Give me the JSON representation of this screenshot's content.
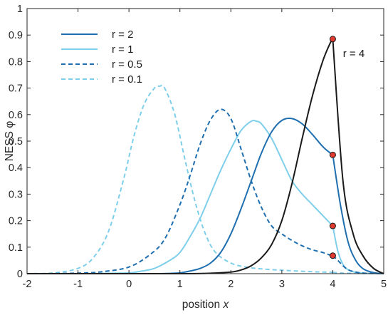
{
  "chart_data": {
    "type": "line",
    "title": "",
    "xlabel": {
      "prefix": "position ",
      "var": "x"
    },
    "ylabel": "NESS φ",
    "xlim": [
      -2,
      5
    ],
    "ylim": [
      0,
      1
    ],
    "xticks": [
      "-2",
      "-1",
      "0",
      "1",
      "2",
      "3",
      "4",
      "5"
    ],
    "yticks": [
      "0",
      "0.1",
      "0.2",
      "0.3",
      "0.4",
      "0.5",
      "0.6",
      "0.7",
      "0.8",
      "0.9",
      "1"
    ],
    "grid": false,
    "legend": {
      "position": "top-left"
    },
    "colors": {
      "r4": "#1a1a1a",
      "r2": "#1f6fb0",
      "r1": "#7fcfea",
      "r05": "#1f6fb0",
      "r01": "#7fcfea",
      "marker": "#e0392f"
    },
    "series": [
      {
        "name": "r = 2",
        "legend": true,
        "style": "solid",
        "color": "#1f6fb0",
        "x": [
          -2,
          -1,
          -0.5,
          0,
          0.5,
          0.8,
          1,
          1.2,
          1.4,
          1.6,
          1.8,
          2,
          2.2,
          2.4,
          2.6,
          2.8,
          3,
          3.2,
          3.4,
          3.6,
          3.8,
          3.95,
          4
        ],
        "y": [
          0,
          0,
          0,
          0,
          0,
          0.001,
          0.003,
          0.01,
          0.02,
          0.04,
          0.08,
          0.15,
          0.245,
          0.35,
          0.455,
          0.535,
          0.578,
          0.585,
          0.565,
          0.525,
          0.48,
          0.455,
          0.448
        ]
      },
      {
        "name": "r = 1",
        "legend": true,
        "style": "solid",
        "color": "#7fcfea",
        "x": [
          -2,
          -1,
          -0.5,
          0,
          0.2,
          0.5,
          0.8,
          1,
          1.2,
          1.4,
          1.6,
          1.8,
          2,
          2.2,
          2.4,
          2.5,
          2.6,
          2.8,
          3,
          3.2,
          3.4,
          3.6,
          3.8,
          3.95,
          4
        ],
        "y": [
          0,
          0,
          0.001,
          0.003,
          0.008,
          0.02,
          0.05,
          0.08,
          0.14,
          0.21,
          0.3,
          0.39,
          0.47,
          0.54,
          0.575,
          0.575,
          0.565,
          0.51,
          0.43,
          0.35,
          0.3,
          0.26,
          0.22,
          0.19,
          0.18
        ]
      },
      {
        "name": "r = 0.5",
        "legend": true,
        "style": "dashed",
        "color": "#1f6fb0",
        "x": [
          -2,
          -1,
          -0.5,
          0,
          0.4,
          0.7,
          1,
          1.2,
          1.4,
          1.6,
          1.8,
          2,
          2.2,
          2.4,
          2.6,
          2.8,
          3,
          3.2,
          3.4,
          3.6,
          3.8,
          3.95,
          4
        ],
        "y": [
          0,
          0.002,
          0.008,
          0.025,
          0.07,
          0.13,
          0.26,
          0.37,
          0.49,
          0.58,
          0.62,
          0.585,
          0.47,
          0.35,
          0.25,
          0.18,
          0.15,
          0.125,
          0.105,
          0.09,
          0.08,
          0.07,
          0.068
        ]
      },
      {
        "name": "r = 0.1",
        "legend": true,
        "style": "dashed",
        "color": "#7fcfea",
        "x": [
          -2,
          -1.5,
          -1,
          -0.7,
          -0.4,
          -0.1,
          0.1,
          0.3,
          0.5,
          0.6,
          0.7,
          0.9,
          1.1,
          1.3,
          1.5,
          1.7,
          2,
          2.3,
          2.6,
          3,
          3.5,
          4
        ],
        "y": [
          0,
          0.002,
          0.02,
          0.06,
          0.16,
          0.36,
          0.52,
          0.64,
          0.7,
          0.707,
          0.7,
          0.6,
          0.43,
          0.27,
          0.15,
          0.08,
          0.04,
          0.025,
          0.018,
          0.013,
          0.008,
          0.005
        ]
      },
      {
        "name": "r = 4",
        "legend": false,
        "style": "solid",
        "color": "#1a1a1a",
        "x": [
          -2,
          -1,
          0,
          1,
          1.5,
          2,
          2.2,
          2.4,
          2.6,
          2.8,
          3,
          3.2,
          3.4,
          3.6,
          3.8,
          3.95,
          4
        ],
        "y": [
          0,
          0,
          0,
          0,
          0.001,
          0.006,
          0.014,
          0.03,
          0.06,
          0.11,
          0.2,
          0.34,
          0.51,
          0.67,
          0.8,
          0.87,
          0.885
        ]
      },
      {
        "name": "r = 4 tail",
        "legend": false,
        "style": "solid",
        "color": "#1a1a1a",
        "x": [
          4,
          4.2,
          4.4,
          4.6,
          4.8,
          5
        ],
        "y": [
          0.885,
          0.35,
          0.15,
          0.065,
          0.02,
          0
        ]
      },
      {
        "name": "r = 2 tail",
        "legend": false,
        "style": "solid",
        "color": "#1f6fb0",
        "x": [
          4,
          4.15,
          4.3,
          4.45,
          4.6,
          4.8,
          5
        ],
        "y": [
          0.448,
          0.26,
          0.12,
          0.05,
          0.018,
          0.004,
          0
        ]
      },
      {
        "name": "r = 1 tail",
        "legend": false,
        "style": "solid",
        "color": "#7fcfea",
        "x": [
          4,
          4.1,
          4.2,
          4.3,
          4.45,
          4.6,
          4.8,
          5
        ],
        "y": [
          0.18,
          0.085,
          0.035,
          0.015,
          0.005,
          0.002,
          0.001,
          0
        ]
      },
      {
        "name": "r = 0.5 tail",
        "legend": false,
        "style": "dashed",
        "color": "#1f6fb0",
        "x": [
          4,
          4.1,
          4.2,
          4.3,
          4.45,
          4.6,
          4.8,
          5
        ],
        "y": [
          0.068,
          0.05,
          0.03,
          0.015,
          0.006,
          0.002,
          0.001,
          0
        ]
      },
      {
        "name": "r = 0.1 tail",
        "legend": false,
        "style": "dashed",
        "color": "#7fcfea",
        "x": [
          4,
          4.2,
          4.5,
          5
        ],
        "y": [
          0.005,
          0.002,
          0.001,
          0
        ]
      }
    ],
    "markers": [
      {
        "x": 4,
        "y": 0.885
      },
      {
        "x": 4,
        "y": 0.448
      },
      {
        "x": 4,
        "y": 0.18
      },
      {
        "x": 4,
        "y": 0.068
      }
    ],
    "annotations": [
      {
        "text": "r = 4",
        "x": 4.2,
        "y": 0.83
      }
    ]
  }
}
